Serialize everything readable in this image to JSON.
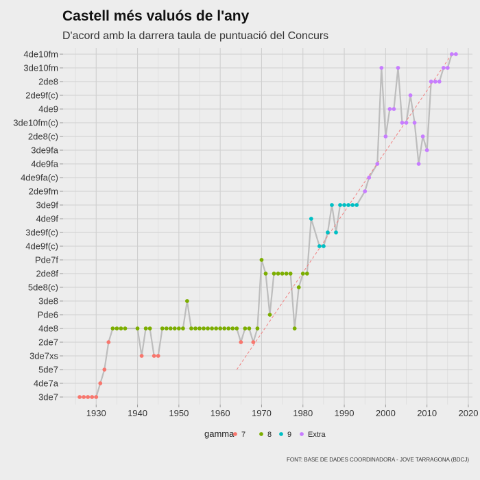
{
  "chart_data": {
    "type": "line",
    "title": "Castell més valuós de l'any",
    "subtitle": "D'acord amb la darrera taula de puntuació del Concurs",
    "caption": "FONT: BASE DE DADES COORDINADORA - JOVE TARRAGONA (BDCJ)",
    "xlabel": "",
    "ylabel": "",
    "xlim": [
      1922,
      2021
    ],
    "x_ticks": [
      1930,
      1940,
      1950,
      1960,
      1970,
      1980,
      1990,
      2000,
      2010,
      2020
    ],
    "y_categories": [
      "3de7",
      "4de7a",
      "5de7",
      "3de7xs",
      "2de7",
      "4de8",
      "Pde6",
      "3de8",
      "5de8(c)",
      "2de8f",
      "Pde7f",
      "4de9f(c)",
      "3de9f(c)",
      "4de9f",
      "3de9f",
      "2de9fm",
      "4de9fa(c)",
      "4de9fa",
      "3de9fa",
      "2de8(c)",
      "3de10fm(c)",
      "4de9",
      "2de9f(c)",
      "2de8",
      "3de10fm",
      "4de10fm"
    ],
    "grid": true,
    "legend": {
      "title": "gamma",
      "position": "bottom",
      "entries": [
        {
          "name": "7",
          "color": "#f8766d"
        },
        {
          "name": "8",
          "color": "#7cae00"
        },
        {
          "name": "9",
          "color": "#00bfc4"
        },
        {
          "name": "Extra",
          "color": "#c77cff"
        }
      ]
    },
    "line_color": "#bdbdbd",
    "trend": {
      "color": "#f08080",
      "from": [
        1964,
        2.0
      ],
      "to": [
        2016,
        25.0
      ]
    },
    "points": [
      {
        "x": 1926,
        "y": "3de7",
        "g": "7"
      },
      {
        "x": 1927,
        "y": "3de7",
        "g": "7"
      },
      {
        "x": 1928,
        "y": "3de7",
        "g": "7"
      },
      {
        "x": 1929,
        "y": "3de7",
        "g": "7"
      },
      {
        "x": 1930,
        "y": "3de7",
        "g": "7"
      },
      {
        "x": 1931,
        "y": "4de7a",
        "g": "7"
      },
      {
        "x": 1932,
        "y": "5de7",
        "g": "7"
      },
      {
        "x": 1933,
        "y": "2de7",
        "g": "7"
      },
      {
        "x": 1934,
        "y": "4de8",
        "g": "8"
      },
      {
        "x": 1935,
        "y": "4de8",
        "g": "8"
      },
      {
        "x": 1936,
        "y": "4de8",
        "g": "8"
      },
      {
        "x": 1937,
        "y": "4de8",
        "g": "8"
      },
      {
        "x": 1940,
        "y": "4de8",
        "g": "8"
      },
      {
        "x": 1941,
        "y": "3de7xs",
        "g": "7"
      },
      {
        "x": 1942,
        "y": "4de8",
        "g": "8"
      },
      {
        "x": 1943,
        "y": "4de8",
        "g": "8"
      },
      {
        "x": 1944,
        "y": "3de7xs",
        "g": "7"
      },
      {
        "x": 1945,
        "y": "3de7xs",
        "g": "7"
      },
      {
        "x": 1946,
        "y": "4de8",
        "g": "8"
      },
      {
        "x": 1947,
        "y": "4de8",
        "g": "8"
      },
      {
        "x": 1948,
        "y": "4de8",
        "g": "8"
      },
      {
        "x": 1949,
        "y": "4de8",
        "g": "8"
      },
      {
        "x": 1950,
        "y": "4de8",
        "g": "8"
      },
      {
        "x": 1951,
        "y": "4de8",
        "g": "8"
      },
      {
        "x": 1952,
        "y": "3de8",
        "g": "8"
      },
      {
        "x": 1953,
        "y": "4de8",
        "g": "8"
      },
      {
        "x": 1954,
        "y": "4de8",
        "g": "8"
      },
      {
        "x": 1955,
        "y": "4de8",
        "g": "8"
      },
      {
        "x": 1956,
        "y": "4de8",
        "g": "8"
      },
      {
        "x": 1957,
        "y": "4de8",
        "g": "8"
      },
      {
        "x": 1958,
        "y": "4de8",
        "g": "8"
      },
      {
        "x": 1959,
        "y": "4de8",
        "g": "8"
      },
      {
        "x": 1960,
        "y": "4de8",
        "g": "8"
      },
      {
        "x": 1961,
        "y": "4de8",
        "g": "8"
      },
      {
        "x": 1962,
        "y": "4de8",
        "g": "8"
      },
      {
        "x": 1963,
        "y": "4de8",
        "g": "8"
      },
      {
        "x": 1964,
        "y": "4de8",
        "g": "8"
      },
      {
        "x": 1965,
        "y": "2de7",
        "g": "7"
      },
      {
        "x": 1966,
        "y": "4de8",
        "g": "8"
      },
      {
        "x": 1967,
        "y": "4de8",
        "g": "8"
      },
      {
        "x": 1968,
        "y": "2de7",
        "g": "7"
      },
      {
        "x": 1969,
        "y": "4de8",
        "g": "8"
      },
      {
        "x": 1970,
        "y": "Pde7f",
        "g": "8"
      },
      {
        "x": 1971,
        "y": "2de8f",
        "g": "8"
      },
      {
        "x": 1972,
        "y": "Pde6",
        "g": "8"
      },
      {
        "x": 1973,
        "y": "2de8f",
        "g": "8"
      },
      {
        "x": 1974,
        "y": "2de8f",
        "g": "8"
      },
      {
        "x": 1975,
        "y": "2de8f",
        "g": "8"
      },
      {
        "x": 1976,
        "y": "2de8f",
        "g": "8"
      },
      {
        "x": 1977,
        "y": "2de8f",
        "g": "8"
      },
      {
        "x": 1978,
        "y": "4de8",
        "g": "8"
      },
      {
        "x": 1979,
        "y": "5de8(c)",
        "g": "8"
      },
      {
        "x": 1980,
        "y": "2de8f",
        "g": "8"
      },
      {
        "x": 1981,
        "y": "2de8f",
        "g": "8"
      },
      {
        "x": 1982,
        "y": "4de9f",
        "g": "9"
      },
      {
        "x": 1984,
        "y": "4de9f(c)",
        "g": "9"
      },
      {
        "x": 1985,
        "y": "4de9f(c)",
        "g": "9"
      },
      {
        "x": 1986,
        "y": "3de9f(c)",
        "g": "9"
      },
      {
        "x": 1987,
        "y": "3de9f",
        "g": "9"
      },
      {
        "x": 1988,
        "y": "3de9f(c)",
        "g": "9"
      },
      {
        "x": 1989,
        "y": "3de9f",
        "g": "9"
      },
      {
        "x": 1990,
        "y": "3de9f",
        "g": "9"
      },
      {
        "x": 1991,
        "y": "3de9f",
        "g": "9"
      },
      {
        "x": 1992,
        "y": "3de9f",
        "g": "9"
      },
      {
        "x": 1993,
        "y": "3de9f",
        "g": "9"
      },
      {
        "x": 1995,
        "y": "2de9fm",
        "g": "Extra"
      },
      {
        "x": 1996,
        "y": "4de9fa(c)",
        "g": "Extra"
      },
      {
        "x": 1998,
        "y": "4de9fa",
        "g": "Extra"
      },
      {
        "x": 1999,
        "y": "3de10fm",
        "g": "Extra"
      },
      {
        "x": 2000,
        "y": "2de8(c)",
        "g": "Extra"
      },
      {
        "x": 2001,
        "y": "4de9",
        "g": "Extra"
      },
      {
        "x": 2002,
        "y": "4de9",
        "g": "Extra"
      },
      {
        "x": 2003,
        "y": "3de10fm",
        "g": "Extra"
      },
      {
        "x": 2004,
        "y": "3de10fm(c)",
        "g": "Extra"
      },
      {
        "x": 2005,
        "y": "3de10fm(c)",
        "g": "Extra"
      },
      {
        "x": 2006,
        "y": "2de9f(c)",
        "g": "Extra"
      },
      {
        "x": 2007,
        "y": "3de10fm(c)",
        "g": "Extra"
      },
      {
        "x": 2008,
        "y": "4de9fa",
        "g": "Extra"
      },
      {
        "x": 2009,
        "y": "2de8(c)",
        "g": "Extra"
      },
      {
        "x": 2010,
        "y": "3de9fa",
        "g": "Extra"
      },
      {
        "x": 2011,
        "y": "2de8",
        "g": "Extra"
      },
      {
        "x": 2012,
        "y": "2de8",
        "g": "Extra"
      },
      {
        "x": 2013,
        "y": "2de8",
        "g": "Extra"
      },
      {
        "x": 2014,
        "y": "3de10fm",
        "g": "Extra"
      },
      {
        "x": 2015,
        "y": "3de10fm",
        "g": "Extra"
      },
      {
        "x": 2016,
        "y": "4de10fm",
        "g": "Extra"
      },
      {
        "x": 2017,
        "y": "4de10fm",
        "g": "Extra"
      }
    ]
  }
}
